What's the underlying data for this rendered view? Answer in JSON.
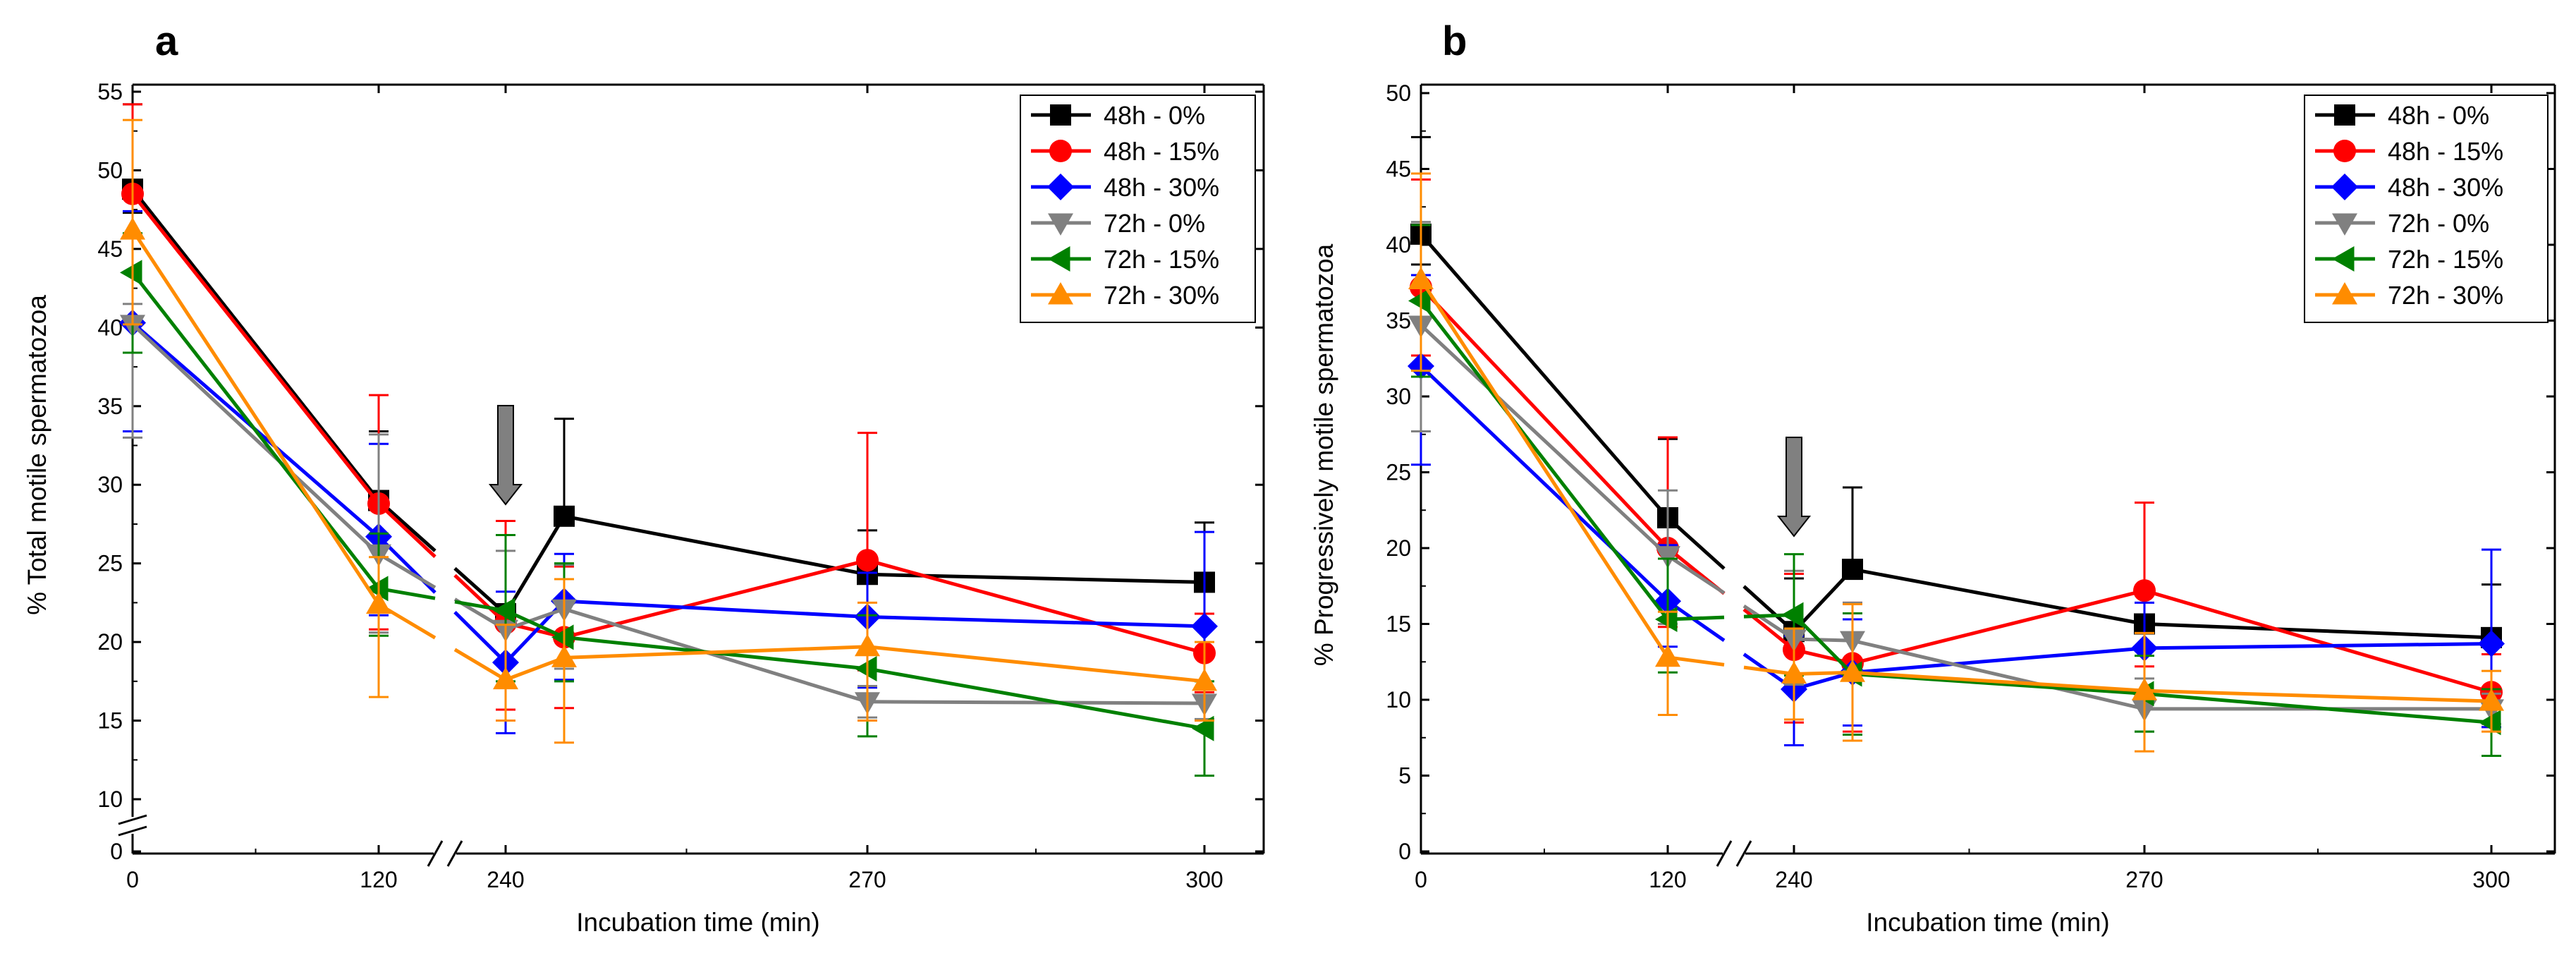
{
  "chart_data": [
    {
      "type": "line",
      "panel_label": "a",
      "title": "",
      "xlabel": "Incubation time (min)",
      "ylabel": "% Total motile spermatozoa",
      "x_categories": [
        "0",
        "120",
        "240",
        "270",
        "300"
      ],
      "x_values": [
        0,
        120,
        240,
        255,
        270,
        300
      ],
      "y_ticks": [
        "0",
        "10",
        "15",
        "20",
        "25",
        "30",
        "35",
        "40",
        "45",
        "50",
        "55"
      ],
      "ylim": [
        0,
        55
      ],
      "y_axis_break": [
        0,
        10
      ],
      "x_axis_break": [
        120,
        240
      ],
      "arrow_at_x": 240,
      "legend_position": "top-right",
      "series": [
        {
          "name": "48h - 0%",
          "color": "#000000",
          "marker": "square",
          "values": [
            48.8,
            29.0,
            21.8,
            28.0,
            24.3,
            23.8
          ],
          "err_up": [
            5.4,
            4.4,
            5.0,
            6.2,
            2.8,
            3.8
          ],
          "err_down": [
            1.5,
            0,
            0,
            0,
            0,
            0
          ]
        },
        {
          "name": "48h - 15%",
          "color": "#ff0000",
          "marker": "circle",
          "values": [
            48.5,
            28.8,
            21.2,
            20.3,
            25.2,
            19.3
          ],
          "err_up": [
            5.7,
            6.9,
            6.5,
            4.5,
            8.1,
            2.5
          ],
          "err_down": [
            0,
            8.0,
            5.5,
            4.5,
            7.0,
            2.5
          ]
        },
        {
          "name": "48h - 30%",
          "color": "#0000ff",
          "marker": "diamond",
          "values": [
            40.3,
            26.7,
            18.7,
            22.6,
            21.6,
            21.0
          ],
          "err_up": [
            7.1,
            5.9,
            4.5,
            3.0,
            2.8,
            6.0
          ],
          "err_down": [
            6.9,
            5.0,
            4.5,
            5.0,
            4.5,
            6.0
          ]
        },
        {
          "name": "72h - 0%",
          "color": "#808080",
          "marker": "triangle-down",
          "values": [
            40.2,
            25.6,
            20.8,
            22.1,
            16.2,
            16.1
          ],
          "err_up": [
            1.3,
            7.6,
            5.0,
            2.8,
            1.0,
            1.0
          ],
          "err_down": [
            7.2,
            5.0,
            3.6,
            3.8,
            1.0,
            1.0
          ]
        },
        {
          "name": "72h - 15%",
          "color": "#008000",
          "marker": "triangle-left",
          "values": [
            43.5,
            23.4,
            22.0,
            20.3,
            18.3,
            14.5
          ],
          "err_up": [
            2.5,
            3.5,
            4.8,
            4.7,
            3.4,
            3.0
          ],
          "err_down": [
            5.1,
            3.0,
            4.5,
            2.8,
            4.3,
            3.0
          ]
        },
        {
          "name": "72h - 30%",
          "color": "#ff8c00",
          "marker": "triangle-up",
          "values": [
            46.2,
            22.4,
            17.6,
            19.0,
            19.7,
            17.5
          ],
          "err_up": [
            7.0,
            3.0,
            3.5,
            5.0,
            2.8,
            2.5
          ],
          "err_down": [
            6.0,
            5.9,
            2.6,
            5.4,
            4.7,
            2.5
          ]
        }
      ]
    },
    {
      "type": "line",
      "panel_label": "b",
      "title": "",
      "xlabel": "Incubation time (min)",
      "ylabel": "% Progressively motile spermatozoa",
      "x_categories": [
        "0",
        "120",
        "240",
        "270",
        "300"
      ],
      "x_values": [
        0,
        120,
        240,
        255,
        270,
        300
      ],
      "y_ticks": [
        "0",
        "5",
        "10",
        "15",
        "20",
        "25",
        "30",
        "35",
        "40",
        "45",
        "50"
      ],
      "ylim": [
        0,
        50
      ],
      "y_axis_break": null,
      "x_axis_break": [
        120,
        240
      ],
      "arrow_at_x": 240,
      "legend_position": "top-right",
      "series": [
        {
          "name": "48h - 0%",
          "color": "#000000",
          "marker": "square",
          "values": [
            40.7,
            22.0,
            14.5,
            18.6,
            15.0,
            14.1
          ],
          "err_up": [
            6.4,
            5.2,
            3.5,
            5.4,
            2.5,
            3.5
          ],
          "err_down": [
            2.0,
            0,
            0,
            0,
            0,
            0
          ]
        },
        {
          "name": "48h - 15%",
          "color": "#ff0000",
          "marker": "circle",
          "values": [
            37.2,
            20.0,
            13.3,
            12.4,
            17.2,
            10.5
          ],
          "err_up": [
            7.1,
            7.3,
            5.0,
            4.0,
            5.8,
            2.5
          ],
          "err_down": [
            4.5,
            5.2,
            4.8,
            4.5,
            5.0,
            2.3
          ]
        },
        {
          "name": "48h - 30%",
          "color": "#0000ff",
          "marker": "diamond",
          "values": [
            32.0,
            16.5,
            10.7,
            11.8,
            13.4,
            13.7
          ],
          "err_up": [
            6.0,
            3.7,
            3.5,
            3.5,
            3.0,
            6.2
          ],
          "err_down": [
            6.5,
            3.0,
            3.7,
            3.5,
            3.0,
            5.5
          ]
        },
        {
          "name": "72h - 0%",
          "color": "#808080",
          "marker": "triangle-down",
          "values": [
            34.7,
            19.5,
            14.0,
            13.9,
            9.4,
            9.4
          ],
          "err_up": [
            6.8,
            4.3,
            4.5,
            2.5,
            2.0,
            1.0
          ],
          "err_down": [
            7.0,
            4.5,
            3.0,
            2.0,
            1.5,
            1.0
          ]
        },
        {
          "name": "72h - 15%",
          "color": "#008000",
          "marker": "triangle-left",
          "values": [
            36.3,
            15.3,
            15.6,
            11.7,
            10.4,
            8.5
          ],
          "err_up": [
            5.0,
            4.0,
            4.0,
            4.0,
            2.5,
            2.2
          ],
          "err_down": [
            5.0,
            3.5,
            4.0,
            4.0,
            2.5,
            2.2
          ]
        },
        {
          "name": "72h - 30%",
          "color": "#ff8c00",
          "marker": "triangle-up",
          "values": [
            37.7,
            12.8,
            11.7,
            11.8,
            10.6,
            9.9
          ],
          "err_up": [
            7.0,
            3.0,
            3.0,
            4.5,
            3.8,
            2.0
          ],
          "err_down": [
            6.0,
            3.8,
            3.0,
            4.5,
            4.0,
            2.0
          ]
        }
      ]
    }
  ]
}
